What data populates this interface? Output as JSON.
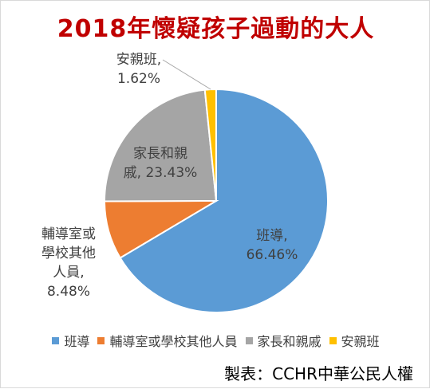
{
  "title": "2018年懷疑孩子過動的大人",
  "source": "製表：CCHR中華公民人權",
  "chart_data": {
    "type": "pie",
    "categories": [
      "班導",
      "輔導室或學校其他人員",
      "家長和親戚",
      "安親班"
    ],
    "values": [
      66.46,
      8.48,
      23.43,
      1.62
    ],
    "unit": "%",
    "colors": [
      "#5b9bd5",
      "#ed7d31",
      "#a5a5a5",
      "#ffc000"
    ],
    "legend_position": "bottom",
    "data_labels": [
      [
        "班導,",
        "66.46%"
      ],
      [
        "輔導室或",
        "學校其他",
        "人員,",
        "8.48%"
      ],
      [
        "家長和親",
        "戚, 23.43%"
      ],
      [
        "安親班,",
        "1.62%"
      ]
    ]
  }
}
